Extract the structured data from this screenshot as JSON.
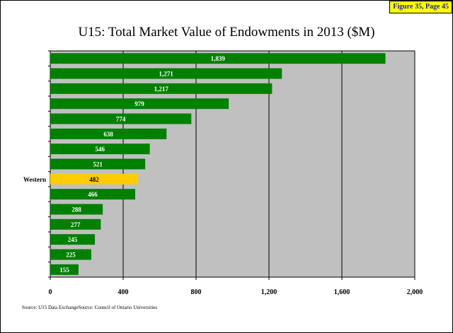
{
  "figure_tag": "Figure 35, Page 45",
  "source_text": "Source:  U15 Data ExchangeSource:  Council of Ontario Universities",
  "chart_data": {
    "type": "bar",
    "orientation": "horizontal",
    "title": "U15: Total Market Value of Endowments in 2013 ($M)",
    "categories": [
      "",
      "",
      "",
      "",
      "",
      "",
      "",
      "",
      "Western",
      "",
      "",
      "",
      "",
      "",
      ""
    ],
    "values": [
      1839,
      1271,
      1217,
      979,
      774,
      638,
      546,
      521,
      482,
      466,
      288,
      277,
      245,
      225,
      155
    ],
    "value_labels": [
      "1,839",
      "1,271",
      "1,217",
      "979",
      "774",
      "638",
      "546",
      "521",
      "482",
      "466",
      "288",
      "277",
      "245",
      "225",
      "155"
    ],
    "highlight_index": 8,
    "x_ticks": [
      0,
      400,
      800,
      1200,
      1600,
      2000
    ],
    "x_tick_labels": [
      "0",
      "400",
      "800",
      "1,200",
      "1,600",
      "2,000"
    ],
    "xlim": [
      0,
      2000
    ],
    "grid": true,
    "colors": {
      "bar": "#008000",
      "highlight": "#ffcc00",
      "plot_bg": "#c0c0c0",
      "bar_label": "#ffffff"
    }
  }
}
